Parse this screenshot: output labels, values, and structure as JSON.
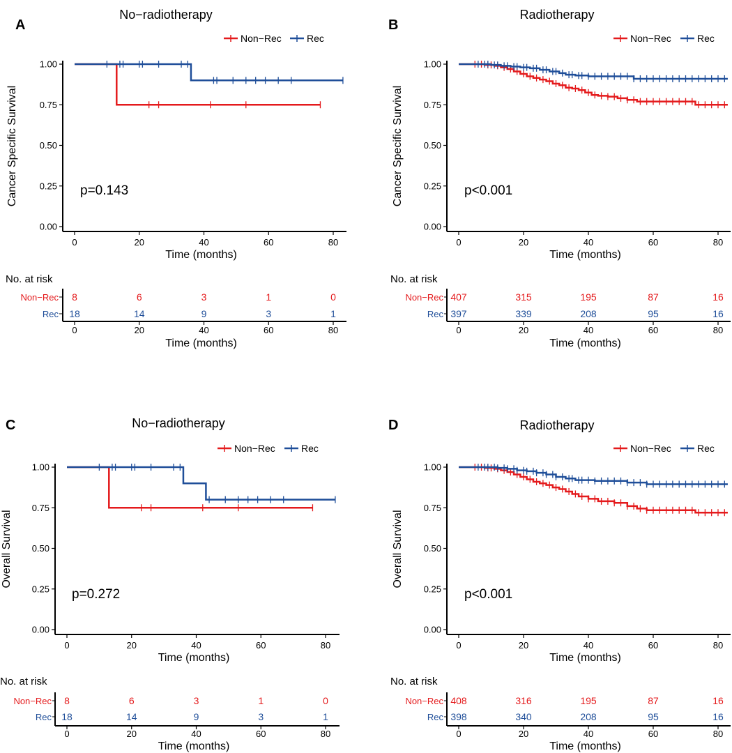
{
  "colors": {
    "non_rec": "#e41a1c",
    "rec": "#1f4e99",
    "axis": "#000000"
  },
  "chart_data": [
    {
      "type": "line",
      "panel": "A",
      "title": "No−radiotherapy",
      "xlabel": "Time (months)",
      "ylabel": "Cancer Specific Survival",
      "xlim": [
        0,
        83
      ],
      "ylim": [
        0,
        1
      ],
      "x_ticks": [
        "0",
        "20",
        "40",
        "60",
        "80"
      ],
      "y_ticks": [
        "0.00",
        "0.25",
        "0.50",
        "0.75",
        "1.00"
      ],
      "pvalue": "p=0.143",
      "legend": [
        "Non−Rec",
        "Rec"
      ],
      "series": [
        {
          "name": "Non−Rec",
          "color": "#e41a1c",
          "steps": [
            [
              0,
              1.0
            ],
            [
              13,
              0.75
            ]
          ],
          "end": 76,
          "censor": [
            23,
            26,
            42,
            53,
            76
          ]
        },
        {
          "name": "Rec",
          "color": "#1f4e99",
          "steps": [
            [
              0,
              1.0
            ],
            [
              36,
              0.9
            ]
          ],
          "end": 83,
          "censor": [
            10,
            14,
            15,
            20,
            21,
            26,
            33,
            35,
            43,
            44,
            49,
            53,
            56,
            59,
            63,
            67,
            83
          ]
        }
      ],
      "risk_table": {
        "title": "No. at risk",
        "times": [
          "0",
          "20",
          "40",
          "60",
          "80"
        ],
        "groups": [
          {
            "name": "Non−Rec",
            "color": "#e41a1c",
            "values": [
              "8",
              "6",
              "3",
              "1",
              "0"
            ]
          },
          {
            "name": "Rec",
            "color": "#1f4e99",
            "values": [
              "18",
              "14",
              "9",
              "3",
              "1"
            ]
          }
        ],
        "xlabel": "Time (months)"
      }
    },
    {
      "type": "line",
      "panel": "B",
      "title": "Radiotherapy",
      "xlabel": "Time (months)",
      "ylabel": "Cancer Specific Survival",
      "xlim": [
        0,
        83
      ],
      "ylim": [
        0,
        1
      ],
      "x_ticks": [
        "0",
        "20",
        "40",
        "60",
        "80"
      ],
      "y_ticks": [
        "0.00",
        "0.25",
        "0.50",
        "0.75",
        "1.00"
      ],
      "pvalue": "p<0.001",
      "legend": [
        "Non−Rec",
        "Rec"
      ],
      "series": [
        {
          "name": "Non−Rec",
          "color": "#e41a1c",
          "steps": [
            [
              0,
              1.0
            ],
            [
              8,
              0.995
            ],
            [
              11,
              0.99
            ],
            [
              13,
              0.98
            ],
            [
              15,
              0.97
            ],
            [
              17,
              0.955
            ],
            [
              19,
              0.94
            ],
            [
              21,
              0.925
            ],
            [
              23,
              0.915
            ],
            [
              25,
              0.905
            ],
            [
              27,
              0.895
            ],
            [
              29,
              0.88
            ],
            [
              31,
              0.87
            ],
            [
              33,
              0.855
            ],
            [
              35,
              0.85
            ],
            [
              37,
              0.84
            ],
            [
              39,
              0.825
            ],
            [
              41,
              0.81
            ],
            [
              43,
              0.805
            ],
            [
              46,
              0.8
            ],
            [
              49,
              0.79
            ],
            [
              52,
              0.78
            ],
            [
              55,
              0.77
            ],
            [
              73,
              0.75
            ]
          ],
          "end": 83,
          "censor": [
            5,
            7,
            9,
            10,
            12,
            14,
            16,
            18,
            20,
            22,
            24,
            26,
            28,
            30,
            32,
            34,
            36,
            38,
            40,
            42,
            44,
            46,
            48,
            50,
            52,
            54,
            56,
            58,
            60,
            62,
            64,
            66,
            68,
            70,
            72,
            74,
            76,
            78,
            80,
            82
          ]
        },
        {
          "name": "Rec",
          "color": "#1f4e99",
          "steps": [
            [
              0,
              1.0
            ],
            [
              10,
              0.995
            ],
            [
              13,
              0.99
            ],
            [
              16,
              0.985
            ],
            [
              19,
              0.98
            ],
            [
              22,
              0.975
            ],
            [
              25,
              0.965
            ],
            [
              28,
              0.955
            ],
            [
              31,
              0.945
            ],
            [
              33,
              0.935
            ],
            [
              36,
              0.93
            ],
            [
              40,
              0.925
            ],
            [
              54,
              0.91
            ]
          ],
          "end": 83,
          "censor": [
            6,
            8,
            9,
            11,
            12,
            14,
            15,
            17,
            18,
            20,
            21,
            23,
            24,
            26,
            27,
            29,
            30,
            32,
            34,
            35,
            37,
            38,
            40,
            42,
            44,
            46,
            48,
            50,
            52,
            54,
            56,
            58,
            60,
            62,
            64,
            66,
            68,
            70,
            72,
            74,
            76,
            78,
            80,
            82
          ]
        }
      ],
      "risk_table": {
        "title": "No. at risk",
        "times": [
          "0",
          "20",
          "40",
          "60",
          "80"
        ],
        "groups": [
          {
            "name": "Non−Rec",
            "color": "#e41a1c",
            "values": [
              "407",
              "315",
              "195",
              "87",
              "16"
            ]
          },
          {
            "name": "Rec",
            "color": "#1f4e99",
            "values": [
              "397",
              "339",
              "208",
              "95",
              "16"
            ]
          }
        ],
        "xlabel": "Time (months)"
      }
    },
    {
      "type": "line",
      "panel": "C",
      "title": "No−radiotherapy",
      "xlabel": "Time (months)",
      "ylabel": "Overall Survival",
      "xlim": [
        0,
        83
      ],
      "ylim": [
        0,
        1
      ],
      "x_ticks": [
        "0",
        "20",
        "40",
        "60",
        "80"
      ],
      "y_ticks": [
        "0.00",
        "0.25",
        "0.50",
        "0.75",
        "1.00"
      ],
      "pvalue": "p=0.272",
      "legend": [
        "Non−Rec",
        "Rec"
      ],
      "series": [
        {
          "name": "Non−Rec",
          "color": "#e41a1c",
          "steps": [
            [
              0,
              1.0
            ],
            [
              13,
              0.75
            ]
          ],
          "end": 76,
          "censor": [
            23,
            26,
            42,
            53,
            76
          ]
        },
        {
          "name": "Rec",
          "color": "#1f4e99",
          "steps": [
            [
              0,
              1.0
            ],
            [
              36,
              0.9
            ],
            [
              43,
              0.8
            ]
          ],
          "end": 83,
          "censor": [
            10,
            14,
            15,
            20,
            21,
            26,
            33,
            35,
            44,
            49,
            53,
            56,
            59,
            63,
            67,
            83
          ]
        }
      ],
      "risk_table": {
        "title": "No. at risk",
        "times": [
          "0",
          "20",
          "40",
          "60",
          "80"
        ],
        "groups": [
          {
            "name": "Non−Rec",
            "color": "#e41a1c",
            "values": [
              "8",
              "6",
              "3",
              "1",
              "0"
            ]
          },
          {
            "name": "Rec",
            "color": "#1f4e99",
            "values": [
              "18",
              "14",
              "9",
              "3",
              "1"
            ]
          }
        ],
        "xlabel": "Time (months)"
      }
    },
    {
      "type": "line",
      "panel": "D",
      "title": "Radiotherapy",
      "xlabel": "Time (months)",
      "ylabel": "Overall Survival",
      "xlim": [
        0,
        83
      ],
      "ylim": [
        0,
        1
      ],
      "x_ticks": [
        "0",
        "20",
        "40",
        "60",
        "80"
      ],
      "y_ticks": [
        "0.00",
        "0.25",
        "0.50",
        "0.75",
        "1.00"
      ],
      "pvalue": "p<0.001",
      "legend": [
        "Non−Rec",
        "Rec"
      ],
      "series": [
        {
          "name": "Non−Rec",
          "color": "#e41a1c",
          "steps": [
            [
              0,
              1.0
            ],
            [
              8,
              0.995
            ],
            [
              11,
              0.99
            ],
            [
              13,
              0.98
            ],
            [
              15,
              0.97
            ],
            [
              17,
              0.955
            ],
            [
              19,
              0.94
            ],
            [
              21,
              0.925
            ],
            [
              23,
              0.91
            ],
            [
              25,
              0.9
            ],
            [
              27,
              0.89
            ],
            [
              29,
              0.875
            ],
            [
              31,
              0.865
            ],
            [
              33,
              0.85
            ],
            [
              35,
              0.835
            ],
            [
              37,
              0.82
            ],
            [
              40,
              0.805
            ],
            [
              43,
              0.79
            ],
            [
              48,
              0.78
            ],
            [
              52,
              0.76
            ],
            [
              55,
              0.745
            ],
            [
              58,
              0.735
            ],
            [
              73,
              0.72
            ]
          ],
          "end": 83,
          "censor": [
            5,
            7,
            9,
            10,
            12,
            14,
            16,
            18,
            20,
            22,
            24,
            26,
            28,
            30,
            32,
            34,
            36,
            38,
            40,
            42,
            44,
            46,
            48,
            50,
            52,
            54,
            56,
            58,
            60,
            62,
            64,
            66,
            68,
            70,
            72,
            74,
            76,
            78,
            80,
            82
          ]
        },
        {
          "name": "Rec",
          "color": "#1f4e99",
          "steps": [
            [
              0,
              1.0
            ],
            [
              12,
              0.995
            ],
            [
              15,
              0.99
            ],
            [
              18,
              0.98
            ],
            [
              21,
              0.975
            ],
            [
              24,
              0.965
            ],
            [
              27,
              0.955
            ],
            [
              30,
              0.94
            ],
            [
              33,
              0.93
            ],
            [
              36,
              0.92
            ],
            [
              42,
              0.915
            ],
            [
              52,
              0.905
            ],
            [
              58,
              0.895
            ]
          ],
          "end": 83,
          "censor": [
            6,
            8,
            9,
            11,
            12,
            14,
            15,
            17,
            18,
            20,
            21,
            23,
            24,
            26,
            27,
            29,
            30,
            32,
            34,
            35,
            37,
            38,
            40,
            42,
            44,
            46,
            48,
            50,
            52,
            54,
            56,
            58,
            60,
            62,
            64,
            66,
            68,
            70,
            72,
            74,
            76,
            78,
            80,
            82
          ]
        }
      ],
      "risk_table": {
        "title": "No. at risk",
        "times": [
          "0",
          "20",
          "40",
          "60",
          "80"
        ],
        "groups": [
          {
            "name": "Non−Rec",
            "color": "#e41a1c",
            "values": [
              "408",
              "316",
              "195",
              "87",
              "16"
            ]
          },
          {
            "name": "Rec",
            "color": "#1f4e99",
            "values": [
              "398",
              "340",
              "208",
              "95",
              "16"
            ]
          }
        ],
        "xlabel": "Time (months)"
      }
    }
  ]
}
